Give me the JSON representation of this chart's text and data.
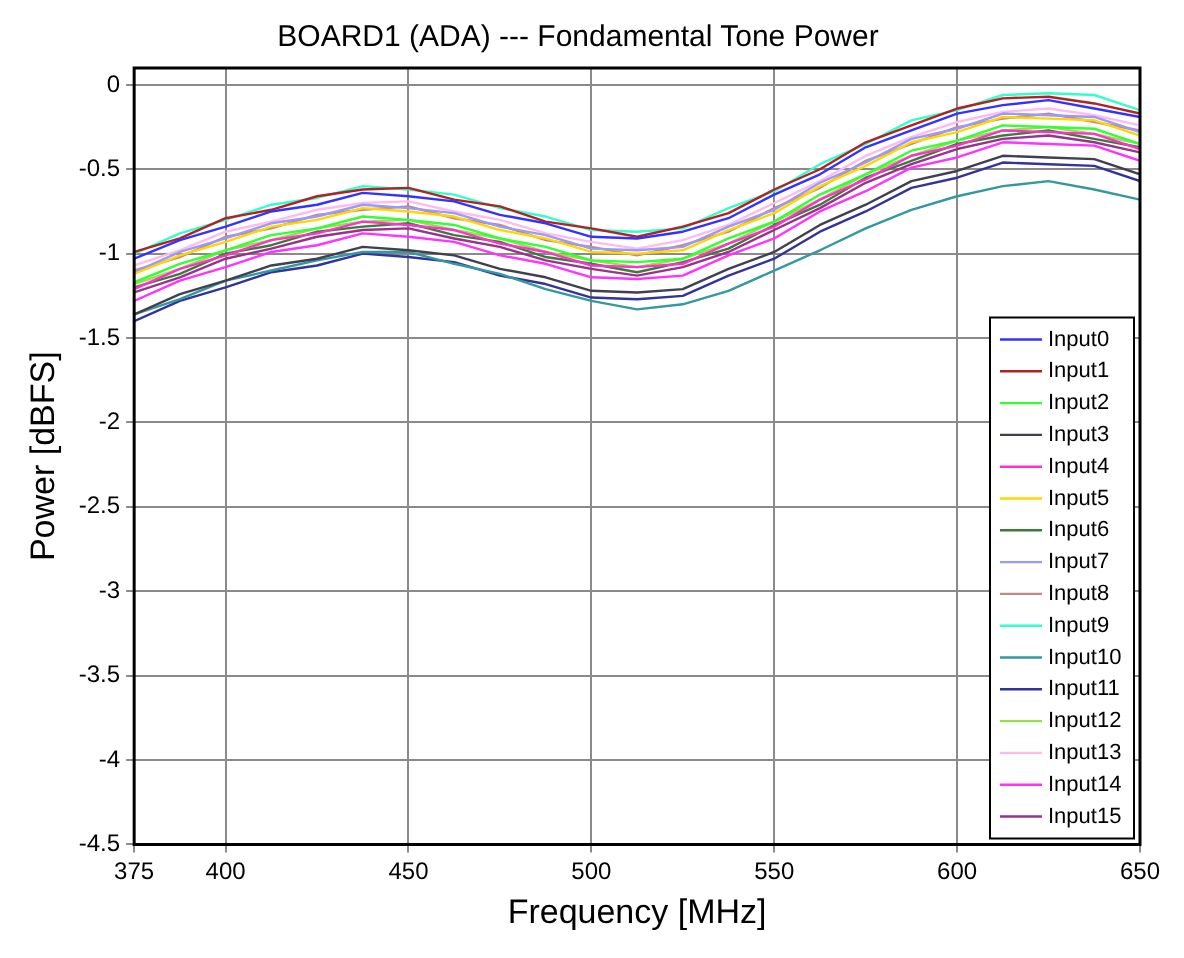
{
  "chart_data": {
    "type": "line",
    "title": "BOARD1 (ADA) --- Fondamental Tone Power",
    "xlabel": "Frequency [MHz]",
    "ylabel": "Power [dBFS]",
    "x": [
      375,
      387.5,
      400,
      412.5,
      425,
      437.5,
      450,
      462.5,
      475,
      487.5,
      500,
      512.5,
      525,
      537.5,
      550,
      562.5,
      575,
      587.5,
      600,
      612.5,
      625,
      637.5,
      650
    ],
    "xlim": [
      375,
      650
    ],
    "xticks": [
      375,
      400,
      450,
      500,
      550,
      600,
      650
    ],
    "ylim": [
      -4.5,
      0.1
    ],
    "yticks": [
      -4.5,
      -4,
      -3.5,
      -3,
      -2.5,
      -2,
      -1.5,
      -1,
      -0.5,
      0
    ],
    "grid": true,
    "legend": "bottom right",
    "marker": "none",
    "line_style": "solid",
    "series": [
      {
        "name": "Input0",
        "color": "#3333ff",
        "values": [
          -1.03,
          -0.92,
          -0.84,
          -0.75,
          -0.71,
          -0.64,
          -0.66,
          -0.69,
          -0.77,
          -0.82,
          -0.9,
          -0.91,
          -0.87,
          -0.79,
          -0.65,
          -0.53,
          -0.37,
          -0.27,
          -0.17,
          -0.12,
          -0.09,
          -0.14,
          -0.19
        ]
      },
      {
        "name": "Input1",
        "color": "#b22222",
        "values": [
          -0.99,
          -0.91,
          -0.79,
          -0.74,
          -0.66,
          -0.62,
          -0.61,
          -0.68,
          -0.72,
          -0.81,
          -0.85,
          -0.9,
          -0.84,
          -0.76,
          -0.62,
          -0.5,
          -0.34,
          -0.24,
          -0.14,
          -0.08,
          -0.07,
          -0.11,
          -0.17
        ]
      },
      {
        "name": "Input2",
        "color": "#33ff33",
        "values": [
          -1.17,
          -1.06,
          -0.98,
          -0.89,
          -0.85,
          -0.78,
          -0.8,
          -0.83,
          -0.91,
          -0.96,
          -1.04,
          -1.05,
          -1.03,
          -0.91,
          -0.81,
          -0.65,
          -0.53,
          -0.39,
          -0.33,
          -0.24,
          -0.25,
          -0.26,
          -0.35
        ]
      },
      {
        "name": "Input3",
        "color": "#404050",
        "values": [
          -1.36,
          -1.24,
          -1.16,
          -1.07,
          -1.03,
          -0.96,
          -0.98,
          -1.01,
          -1.09,
          -1.14,
          -1.22,
          -1.23,
          -1.21,
          -1.09,
          -0.99,
          -0.83,
          -0.71,
          -0.57,
          -0.51,
          -0.42,
          -0.43,
          -0.44,
          -0.53
        ]
      },
      {
        "name": "Input4",
        "color": "#ff33cc",
        "values": [
          -1.21,
          -1.09,
          -1.01,
          -0.92,
          -0.88,
          -0.81,
          -0.83,
          -0.86,
          -0.94,
          -0.99,
          -1.07,
          -1.08,
          -1.06,
          -0.94,
          -0.84,
          -0.68,
          -0.56,
          -0.42,
          -0.36,
          -0.27,
          -0.28,
          -0.29,
          -0.38
        ]
      },
      {
        "name": "Input5",
        "color": "#ffd700",
        "values": [
          -1.12,
          -1.01,
          -0.93,
          -0.84,
          -0.8,
          -0.73,
          -0.75,
          -0.78,
          -0.86,
          -0.91,
          -0.99,
          -1,
          -0.98,
          -0.86,
          -0.76,
          -0.6,
          -0.48,
          -0.34,
          -0.28,
          -0.19,
          -0.2,
          -0.21,
          -0.3
        ]
      },
      {
        "name": "Input6",
        "color": "#3d7a3d",
        "values": [
          -1.2,
          -1.12,
          -1,
          -0.95,
          -0.87,
          -0.84,
          -0.82,
          -0.89,
          -0.93,
          -1.02,
          -1.06,
          -1.11,
          -1.05,
          -0.97,
          -0.83,
          -0.71,
          -0.55,
          -0.45,
          -0.35,
          -0.3,
          -0.27,
          -0.32,
          -0.37
        ]
      },
      {
        "name": "Input7",
        "color": "#9999ff",
        "values": [
          -1.11,
          -0.99,
          -0.91,
          -0.82,
          -0.78,
          -0.71,
          -0.73,
          -0.76,
          -0.84,
          -0.89,
          -0.97,
          -0.98,
          -0.96,
          -0.84,
          -0.74,
          -0.58,
          -0.46,
          -0.32,
          -0.26,
          -0.17,
          -0.18,
          -0.19,
          -0.28
        ]
      },
      {
        "name": "Input8",
        "color": "#c08a8a",
        "values": [
          -1.1,
          -1.02,
          -0.9,
          -0.85,
          -0.77,
          -0.74,
          -0.72,
          -0.79,
          -0.83,
          -0.92,
          -0.96,
          -1.01,
          -0.95,
          -0.87,
          -0.73,
          -0.61,
          -0.45,
          -0.35,
          -0.25,
          -0.2,
          -0.17,
          -0.22,
          -0.27
        ]
      },
      {
        "name": "Input9",
        "color": "#33ffcc",
        "values": [
          -1,
          -0.88,
          -0.8,
          -0.71,
          -0.67,
          -0.6,
          -0.62,
          -0.65,
          -0.73,
          -0.78,
          -0.86,
          -0.87,
          -0.85,
          -0.73,
          -0.63,
          -0.47,
          -0.35,
          -0.21,
          -0.15,
          -0.06,
          -0.05,
          -0.06,
          -0.15
        ]
      },
      {
        "name": "Input10",
        "color": "#3399a0",
        "values": [
          -1.36,
          -1.27,
          -1.16,
          -1.1,
          -1.04,
          -0.99,
          -0.99,
          -1.06,
          -1.12,
          -1.21,
          -1.28,
          -1.33,
          -1.3,
          -1.22,
          -1.1,
          -0.98,
          -0.85,
          -0.74,
          -0.66,
          -0.6,
          -0.57,
          -0.62,
          -0.68
        ]
      },
      {
        "name": "Input11",
        "color": "#333399",
        "values": [
          -1.4,
          -1.28,
          -1.2,
          -1.11,
          -1.07,
          -1,
          -1.02,
          -1.05,
          -1.13,
          -1.18,
          -1.26,
          -1.27,
          -1.25,
          -1.13,
          -1.03,
          -0.87,
          -0.75,
          -0.61,
          -0.55,
          -0.46,
          -0.47,
          -0.48,
          -0.57
        ]
      },
      {
        "name": "Input12",
        "color": "#99dd55",
        "values": [
          -1.18,
          -1.09,
          -0.98,
          -0.92,
          -0.85,
          -0.81,
          -0.8,
          -0.86,
          -0.91,
          -0.99,
          -1.04,
          -1.08,
          -1.03,
          -0.94,
          -0.81,
          -0.68,
          -0.53,
          -0.42,
          -0.33,
          -0.27,
          -0.25,
          -0.29,
          -0.35
        ]
      },
      {
        "name": "Input13",
        "color": "#ffbbee",
        "values": [
          -1.07,
          -0.98,
          -0.87,
          -0.81,
          -0.74,
          -0.7,
          -0.69,
          -0.75,
          -0.8,
          -0.88,
          -0.93,
          -0.97,
          -0.92,
          -0.83,
          -0.7,
          -0.57,
          -0.42,
          -0.31,
          -0.22,
          -0.16,
          -0.14,
          -0.18,
          -0.24
        ]
      },
      {
        "name": "Input14",
        "color": "#ff33ff",
        "values": [
          -1.28,
          -1.16,
          -1.08,
          -0.99,
          -0.95,
          -0.88,
          -0.9,
          -0.93,
          -1.01,
          -1.06,
          -1.14,
          -1.15,
          -1.13,
          -1.01,
          -0.91,
          -0.75,
          -0.63,
          -0.49,
          -0.43,
          -0.34,
          -0.35,
          -0.36,
          -0.45
        ]
      },
      {
        "name": "Input15",
        "color": "#993388",
        "values": [
          -1.23,
          -1.14,
          -1.03,
          -0.97,
          -0.9,
          -0.86,
          -0.85,
          -0.91,
          -0.96,
          -1.04,
          -1.09,
          -1.13,
          -1.08,
          -0.99,
          -0.86,
          -0.73,
          -0.58,
          -0.47,
          -0.38,
          -0.32,
          -0.3,
          -0.34,
          -0.4
        ]
      }
    ]
  }
}
